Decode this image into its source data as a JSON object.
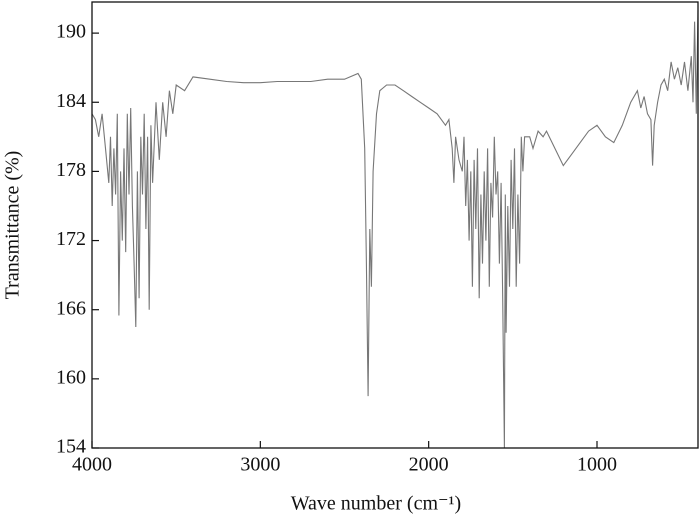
{
  "chart_data": {
    "type": "line",
    "x_label": "Wave number (cm⁻¹)",
    "y_label": "Transmittance (%)",
    "xlim": [
      4000,
      400
    ],
    "ylim": [
      154,
      192.7
    ],
    "xticks": [
      4000,
      3000,
      2000,
      1000
    ],
    "yticks": [
      154,
      160,
      166,
      172,
      178,
      184,
      190
    ],
    "series": [
      {
        "name": "spectrum",
        "color": "#777777",
        "x": [
          4000,
          3980,
          3960,
          3940,
          3920,
          3900,
          3890,
          3880,
          3870,
          3860,
          3850,
          3840,
          3830,
          3820,
          3810,
          3800,
          3790,
          3780,
          3770,
          3760,
          3750,
          3740,
          3730,
          3720,
          3710,
          3700,
          3690,
          3680,
          3670,
          3660,
          3650,
          3640,
          3620,
          3600,
          3580,
          3560,
          3540,
          3520,
          3500,
          3450,
          3400,
          3300,
          3200,
          3100,
          3000,
          2900,
          2800,
          2700,
          2600,
          2500,
          2420,
          2400,
          2380,
          2370,
          2360,
          2350,
          2340,
          2330,
          2310,
          2290,
          2250,
          2200,
          2150,
          2100,
          2050,
          2000,
          1950,
          1900,
          1880,
          1860,
          1850,
          1840,
          1820,
          1800,
          1790,
          1780,
          1770,
          1760,
          1750,
          1740,
          1730,
          1720,
          1710,
          1700,
          1690,
          1680,
          1670,
          1660,
          1650,
          1640,
          1630,
          1620,
          1610,
          1600,
          1590,
          1580,
          1570,
          1560,
          1550,
          1545,
          1540,
          1530,
          1520,
          1510,
          1500,
          1490,
          1480,
          1470,
          1460,
          1450,
          1440,
          1430,
          1400,
          1380,
          1350,
          1320,
          1300,
          1250,
          1200,
          1150,
          1100,
          1050,
          1000,
          950,
          900,
          850,
          800,
          760,
          740,
          720,
          700,
          680,
          670,
          660,
          640,
          620,
          600,
          580,
          560,
          540,
          520,
          500,
          480,
          460,
          440,
          430,
          420,
          410,
          400
        ],
        "values": [
          183,
          182.5,
          181,
          183,
          180,
          177,
          181,
          175,
          180,
          176,
          183,
          165.5,
          178,
          172,
          180,
          171,
          183,
          176,
          183.5,
          175,
          170,
          164.5,
          178,
          167,
          181,
          176,
          183,
          173,
          181,
          166,
          182,
          177,
          184,
          179,
          184,
          181,
          185,
          183,
          185.5,
          185,
          186.2,
          186,
          185.8,
          185.7,
          185.7,
          185.8,
          185.8,
          185.8,
          186,
          186,
          186.5,
          186,
          180,
          170,
          158.5,
          173,
          168,
          178,
          183,
          185,
          185.5,
          185.5,
          185,
          184.5,
          184,
          183.5,
          183,
          182,
          182.5,
          180,
          177,
          181,
          179,
          178,
          181,
          175,
          179,
          172,
          178,
          168,
          179,
          173,
          180,
          167,
          176,
          170,
          178,
          172,
          180,
          168,
          177,
          174,
          181,
          176,
          178,
          170,
          177,
          167,
          154,
          176,
          164,
          175,
          168,
          179,
          173,
          180,
          168,
          176,
          170,
          181,
          178,
          181,
          181,
          180,
          181.5,
          181,
          181.5,
          180,
          178.5,
          179.5,
          180.5,
          181.5,
          182,
          181,
          180.5,
          182,
          184,
          185,
          183.5,
          184.5,
          183,
          182.5,
          178.5,
          182,
          184,
          185.5,
          186,
          185,
          187.5,
          186,
          187,
          185.5,
          187.5,
          185,
          188,
          184,
          191,
          183,
          192
        ]
      }
    ]
  }
}
